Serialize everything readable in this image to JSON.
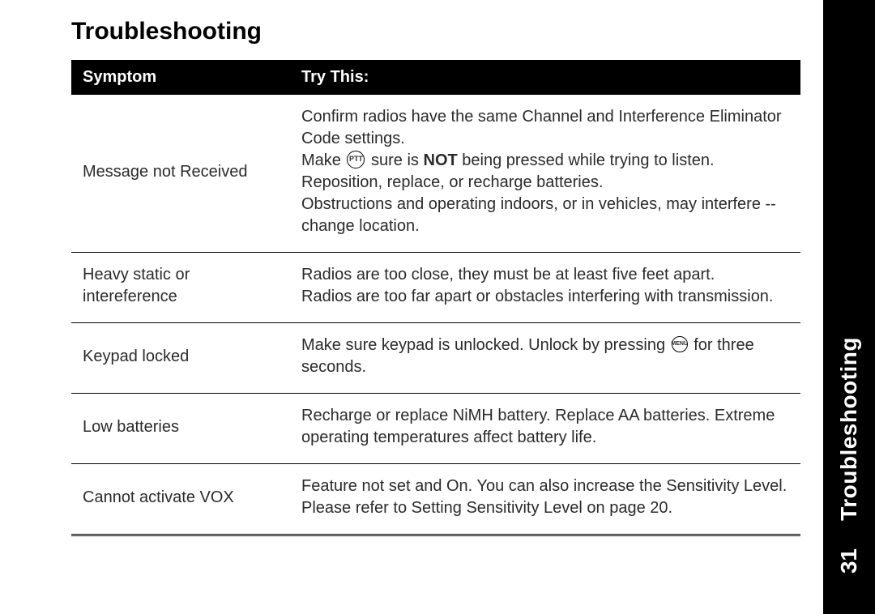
{
  "page": {
    "title": "Troubleshooting",
    "side_label": "Troubleshooting",
    "page_number": "31"
  },
  "table": {
    "headers": {
      "symptom": "Symptom",
      "try": "Try This:"
    },
    "rows": [
      {
        "symptom": "Message not Received",
        "try_pre": "Confirm radios have the same Channel and Interference Eliminator Code settings.\nMake ",
        "icon1": "PTT",
        "try_mid": " sure is ",
        "bold": "NOT",
        "try_post": " being pressed while trying to listen.\nReposition, replace, or recharge batteries.\nObstructions and operating indoors, or in vehicles, may interfere -- change location."
      },
      {
        "symptom": "Heavy static or intereference",
        "try": "Radios are too close, they must be at least five feet apart.\nRadios are too far apart or obstacles interfering with transmission."
      },
      {
        "symptom": "Keypad locked",
        "try_pre": "Make sure keypad is unlocked. Unlock by pressing ",
        "icon1": "MENU",
        "try_post": " for three seconds."
      },
      {
        "symptom": "Low batteries",
        "try": "Recharge or replace NiMH battery. Replace AA batteries. Extreme operating temperatures affect battery life."
      },
      {
        "symptom": "Cannot activate VOX",
        "try": "Feature not set and On. You can also increase the Sensitivity Level. Please refer to Setting Sensitivity Level on page 20."
      }
    ]
  },
  "style": {
    "title_fontsize": 30,
    "body_fontsize": 20,
    "header_bg": "#000000",
    "header_fg": "#ffffff",
    "text_color": "#2b2b2b",
    "border_color": "#000000",
    "side_bg": "#000000",
    "side_fg": "#ffffff",
    "col_widths": [
      "30%",
      "70%"
    ]
  }
}
